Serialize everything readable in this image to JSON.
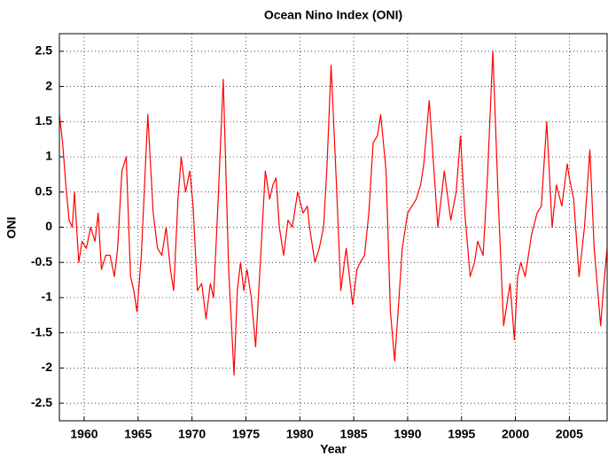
{
  "chart_data": {
    "type": "line",
    "title": "Ocean Nino Index (ONI)",
    "x_label": "Year",
    "y_label": "ONI",
    "color": "#ff0000",
    "grid": true,
    "x": [
      1957.7,
      1958.0,
      1958.3,
      1958.6,
      1958.9,
      1959.1,
      1959.5,
      1959.8,
      1960.2,
      1960.6,
      1961.0,
      1961.3,
      1961.6,
      1962.0,
      1962.4,
      1962.8,
      1963.1,
      1963.5,
      1963.9,
      1964.3,
      1964.6,
      1964.9,
      1965.3,
      1965.9,
      1966.4,
      1966.8,
      1967.2,
      1967.6,
      1968.0,
      1968.3,
      1968.7,
      1969.0,
      1969.4,
      1969.8,
      1970.1,
      1970.5,
      1970.9,
      1971.3,
      1971.7,
      1972.0,
      1972.4,
      1972.9,
      1973.4,
      1973.9,
      1974.2,
      1974.5,
      1974.8,
      1975.1,
      1975.5,
      1975.9,
      1976.3,
      1976.8,
      1977.2,
      1977.5,
      1977.8,
      1978.1,
      1978.5,
      1978.9,
      1979.3,
      1979.8,
      1980.3,
      1980.7,
      1980.9,
      1981.4,
      1981.8,
      1982.2,
      1982.5,
      1982.9,
      1983.4,
      1983.8,
      1984.3,
      1984.9,
      1985.3,
      1985.6,
      1986.0,
      1986.4,
      1986.8,
      1987.2,
      1987.5,
      1988.0,
      1988.4,
      1988.8,
      1989.2,
      1989.5,
      1990.0,
      1990.4,
      1990.8,
      1991.2,
      1991.5,
      1992.0,
      1992.4,
      1992.8,
      1993.4,
      1994.0,
      1994.5,
      1994.9,
      1995.3,
      1995.8,
      1996.2,
      1996.5,
      1997.0,
      1997.4,
      1997.9,
      1998.4,
      1998.9,
      1999.5,
      1999.9,
      2000.2,
      2000.5,
      2000.9,
      2001.5,
      2002.0,
      2002.4,
      2002.9,
      2003.4,
      2003.8,
      2004.3,
      2004.8,
      2005.0,
      2005.4,
      2005.9,
      2006.4,
      2006.9,
      2007.3,
      2007.9,
      2008.2,
      2008.5
    ],
    "values": [
      1.6,
      1.2,
      0.6,
      0.1,
      0.0,
      0.5,
      -0.5,
      -0.2,
      -0.3,
      0.0,
      -0.2,
      0.2,
      -0.6,
      -0.4,
      -0.4,
      -0.7,
      -0.3,
      0.8,
      1.0,
      -0.7,
      -0.9,
      -1.2,
      -0.4,
      1.6,
      0.2,
      -0.3,
      -0.4,
      0.0,
      -0.6,
      -0.9,
      0.4,
      1.0,
      0.5,
      0.8,
      0.3,
      -0.9,
      -0.8,
      -1.3,
      -0.8,
      -1.0,
      0.3,
      2.1,
      -0.6,
      -2.1,
      -0.9,
      -0.5,
      -0.9,
      -0.6,
      -1.0,
      -1.7,
      -0.6,
      0.8,
      0.4,
      0.6,
      0.7,
      0.0,
      -0.4,
      0.1,
      0.0,
      0.5,
      0.2,
      0.3,
      0.0,
      -0.5,
      -0.3,
      0.0,
      0.8,
      2.3,
      0.6,
      -0.9,
      -0.3,
      -1.1,
      -0.6,
      -0.5,
      -0.4,
      0.2,
      1.2,
      1.3,
      1.6,
      0.8,
      -1.2,
      -1.9,
      -1.0,
      -0.3,
      0.2,
      0.3,
      0.4,
      0.6,
      0.9,
      1.8,
      0.9,
      0.0,
      0.8,
      0.1,
      0.5,
      1.3,
      0.2,
      -0.7,
      -0.5,
      -0.2,
      -0.4,
      0.7,
      2.5,
      0.4,
      -1.4,
      -0.8,
      -1.6,
      -0.7,
      -0.5,
      -0.7,
      -0.1,
      0.2,
      0.3,
      1.5,
      0.0,
      0.6,
      0.3,
      0.9,
      0.7,
      0.4,
      -0.7,
      0.0,
      1.1,
      -0.3,
      -1.4,
      -0.8,
      -0.3
    ],
    "xlim": [
      1957.7,
      2008.5
    ],
    "xticks": [
      1960,
      1965,
      1970,
      1975,
      1980,
      1985,
      1990,
      1995,
      2000,
      2005
    ],
    "ylim": [
      -2.75,
      2.75
    ],
    "yticks": [
      -2.5,
      -2,
      -1.5,
      -1,
      -0.5,
      0,
      0.5,
      1,
      1.5,
      2,
      2.5
    ]
  }
}
